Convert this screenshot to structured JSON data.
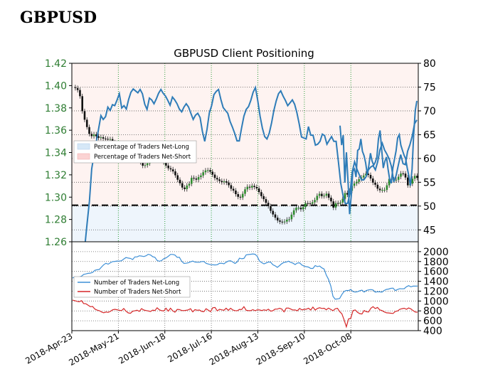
{
  "header": {
    "symbol": "GBPUSD"
  },
  "chart_data": {
    "title": "GBPUSD Client Positioning",
    "date_ticks": [
      "2018-Apr-23",
      "2018-May-21",
      "2018-Jun-18",
      "2018-Jul-16",
      "2018-Aug-13",
      "2018-Sep-10",
      "2018-Oct-08"
    ],
    "top_panel": {
      "type": "line+candlestick",
      "price_axis": {
        "ticks": [
          "1.42",
          "1.40",
          "1.38",
          "1.36",
          "1.34",
          "1.32",
          "1.30",
          "1.28",
          "1.26"
        ],
        "ylim": [
          1.26,
          1.42
        ],
        "side": "left",
        "color": "#2e7d32"
      },
      "sentiment_axis": {
        "ticks": [
          "80",
          "75",
          "70",
          "65",
          "60",
          "55",
          "50",
          "45"
        ],
        "ylim": [
          42.5,
          80
        ],
        "side": "right"
      },
      "legend": [
        "Percentage of Traders Net-Long",
        "Percentage of Traders Net-Short"
      ],
      "legend_position": "center-left",
      "reference_line": 50,
      "sentiment_pct_long": [
        31.5,
        32.8,
        32.5,
        33.6,
        37.2,
        41.5,
        46.3,
        51,
        57.8,
        60.8,
        63.5,
        66.3,
        69,
        68.2,
        68.8,
        70.8,
        70.1,
        71.3,
        71.1,
        72.3,
        73.6,
        70.6,
        71.1,
        70.4,
        72.4,
        73.9,
        74.6,
        74.2,
        73.8,
        74.5,
        73.6,
        71.4,
        70.3,
        72.7,
        72.3,
        71.5,
        72.5,
        73.7,
        74.5,
        73.7,
        73.1,
        72.2,
        71.2,
        72.9,
        72.3,
        71.5,
        70.4,
        69.8,
        70.8,
        71.5,
        70.8,
        69.5,
        68.2,
        69.1,
        69.5,
        68.6,
        65.7,
        63.6,
        66.1,
        69.6,
        71.1,
        73.4,
        74.1,
        74.5,
        72.4,
        70.7,
        70.1,
        69.5,
        67.8,
        66.6,
        65.3,
        63.7,
        63.7,
        66.4,
        68.9,
        70.3,
        70.9,
        72.2,
        73.9,
        74.9,
        72.2,
        68.9,
        66.4,
        64.6,
        64.1,
        65.3,
        67.5,
        70.1,
        72.1,
        73.6,
        74.2,
        73.1,
        72.2,
        71.1,
        71.7,
        72.3,
        71.4,
        69.6,
        67.2,
        64.5,
        64.3,
        64.1,
        66.7,
        64.9,
        64.9,
        62.8,
        63,
        63.6,
        65.1,
        64.8,
        63,
        63.8,
        64.6,
        63.6,
        63.6,
        59.2,
        54.8,
        52.2,
        50.5,
        50.6,
        52.7,
        57.2,
        59.3,
        57.8,
        56.6,
        55.5,
        55.5,
        56.2,
        57.6,
        58.2,
        58.5,
        57.6,
        59.3,
        61.8,
        63.2,
        61.8,
        60.9,
        59.9,
        58.3,
        55.1,
        56.4,
        58.7,
        60.8,
        58.9,
        58.7,
        61.5,
        62.9,
        64.7,
        67.3,
        68.1
      ],
      "sentiment_segment_pct_long": [
        66.9,
        62.8,
        64.9,
        54.9,
        61.3,
        55.1,
        48.3,
        52.2,
        57.3,
        57.8,
        56.1,
        61.7,
        62,
        64.1,
        61.5,
        60.6,
        59.1,
        56.7,
        58.5,
        61.1,
        59.5,
        58.6,
        59.2,
        60.3,
        64.1,
        65.9,
        62,
        58,
        59.4,
        60.3,
        57.8,
        55.6,
        54.8,
        58,
        59.8,
        61.6,
        64.3,
        65,
        62.8,
        61.7,
        60.7,
        59.9,
        58,
        56.3,
        54.3,
        57.8,
        64.9,
        70.1,
        72.1
      ],
      "price_close": [
        1.3985,
        1.3978,
        1.396,
        1.3905,
        1.3771,
        1.3694,
        1.3628,
        1.3567,
        1.3547,
        1.3563,
        1.3546,
        1.3532,
        1.3537,
        1.3525,
        1.3522,
        1.3519,
        1.352,
        1.3491,
        1.3445,
        1.3428,
        1.342,
        1.3421,
        1.344,
        1.343,
        1.3429,
        1.3359,
        1.3336,
        1.3349,
        1.336,
        1.3314,
        1.3282,
        1.3287,
        1.3303,
        1.3358,
        1.3353,
        1.3367,
        1.338,
        1.3386,
        1.3378,
        1.3313,
        1.3283,
        1.3259,
        1.3249,
        1.3231,
        1.3196,
        1.3156,
        1.3125,
        1.3086,
        1.3072,
        1.3104,
        1.312,
        1.3173,
        1.3167,
        1.3157,
        1.318,
        1.3194,
        1.3223,
        1.3239,
        1.3242,
        1.3228,
        1.3202,
        1.3172,
        1.3159,
        1.3145,
        1.3134,
        1.3142,
        1.313,
        1.3107,
        1.3075,
        1.3059,
        1.3027,
        1.3003,
        1.2997,
        1.303,
        1.307,
        1.3093,
        1.3086,
        1.3101,
        1.3091,
        1.3078,
        1.3045,
        1.3009,
        1.2982,
        1.2949,
        1.2919,
        1.2877,
        1.2845,
        1.2816,
        1.2791,
        1.278,
        1.2777,
        1.2781,
        1.2798,
        1.2802,
        1.2843,
        1.2882,
        1.2905,
        1.2905,
        1.2891,
        1.2911,
        1.2946,
        1.2944,
        1.2941,
        1.2954,
        1.2974,
        1.3012,
        1.303,
        1.3009,
        1.3013,
        1.3031,
        1.2995,
        1.2962,
        1.2906,
        1.2947,
        1.2942,
        1.2951,
        1.2985,
        1.3037,
        1.3023,
        1.3057,
        1.3102,
        1.3123,
        1.3138,
        1.3161,
        1.3177,
        1.3194,
        1.321,
        1.3199,
        1.3167,
        1.313,
        1.3111,
        1.3076,
        1.3062,
        1.3065,
        1.3065,
        1.3106,
        1.3164,
        1.3157,
        1.3151,
        1.3156,
        1.3183,
        1.3212,
        1.3211,
        1.3176,
        1.3106,
        1.3121,
        1.3165,
        1.3191,
        1.3173
      ]
    },
    "bottom_panel": {
      "type": "line",
      "y_axis": {
        "ticks": [
          "2000",
          "1800",
          "1600",
          "1400",
          "1200",
          "1000",
          "800",
          "600",
          "400"
        ],
        "ylim": [
          400,
          2200
        ],
        "side": "right"
      },
      "legend": [
        "Number of Traders Net-Long",
        "Number of Traders Net-Short"
      ],
      "legend_position": "center-left",
      "series_colors": {
        "net_long": "#3d8fd6",
        "net_short": "#d62728"
      },
      "net_long": [
        1466,
        1489,
        1482,
        1486,
        1502,
        1539,
        1549,
        1560,
        1565,
        1580,
        1621,
        1632,
        1638,
        1689,
        1735,
        1763,
        1747,
        1775,
        1798,
        1803,
        1810,
        1808,
        1816,
        1850,
        1880,
        1870,
        1863,
        1840,
        1894,
        1894,
        1916,
        1911,
        1901,
        1916,
        1946,
        1933,
        1899,
        1885,
        1822,
        1805,
        1820,
        1858,
        1873,
        1905,
        1944,
        1944,
        1931,
        1885,
        1884,
        1807,
        1762,
        1765,
        1774,
        1794,
        1808,
        1789,
        1785,
        1785,
        1799,
        1801,
        1763,
        1749,
        1736,
        1734,
        1731,
        1735,
        1762,
        1765,
        1754,
        1785,
        1810,
        1815,
        1789,
        1761,
        1793,
        1867,
        1856,
        1863,
        1935,
        1941,
        1946,
        1954,
        1946,
        1904,
        1810,
        1776,
        1752,
        1771,
        1791,
        1787,
        1735,
        1713,
        1681,
        1717,
        1756,
        1782,
        1789,
        1807,
        1783,
        1766,
        1739,
        1770,
        1774,
        1731,
        1706,
        1696,
        1687,
        1660,
        1660,
        1718,
        1697,
        1709,
        1671,
        1649,
        1525,
        1439,
        1307,
        1096,
        1038,
        1042,
        1052,
        1131,
        1194,
        1214,
        1212,
        1232,
        1191,
        1181,
        1188,
        1207,
        1220,
        1182,
        1212,
        1225,
        1233,
        1223,
        1181,
        1187,
        1186,
        1179,
        1213,
        1235,
        1243,
        1257,
        1261,
        1212,
        1233,
        1249,
        1247,
        1250,
        1288,
        1312,
        1287,
        1301,
        1301,
        1303
      ],
      "net_short": [
        1018,
        1007,
        993,
        985,
        1007,
        949,
        944,
        916,
        886,
        889,
        838,
        816,
        804,
        779,
        761,
        778,
        770,
        790,
        822,
        832,
        824,
        814,
        805,
        848,
        795,
        760,
        751,
        793,
        802,
        814,
        790,
        847,
        817,
        807,
        799,
        788,
        816,
        807,
        862,
        822,
        804,
        801,
        853,
        795,
        854,
        802,
        773,
        830,
        827,
        809,
        806,
        812,
        821,
        844,
        780,
        826,
        814,
        817,
        790,
        783,
        843,
        815,
        785,
        864,
        869,
        800,
        832,
        822,
        813,
        854,
        812,
        853,
        818,
        806,
        803,
        831,
        827,
        886,
        813,
        805,
        804,
        825,
        804,
        822,
        820,
        808,
        822,
        811,
        835,
        795,
        804,
        836,
        837,
        853,
        838,
        780,
        856,
        858,
        838,
        818,
        820,
        802,
        850,
        822,
        831,
        834,
        853,
        817,
        877,
        818,
        850,
        864,
        850,
        854,
        823,
        857,
        830,
        805,
        842,
        852,
        786,
        741,
        621,
        476,
        638,
        650,
        807,
        819,
        773,
        745,
        737,
        808,
        783,
        779,
        853,
        885,
        848,
        869,
        821,
        807,
        780,
        761,
        759,
        753,
        749,
        787,
        799,
        832,
        845,
        854,
        834,
        859,
        840,
        806,
        776,
        775
      ]
    }
  }
}
